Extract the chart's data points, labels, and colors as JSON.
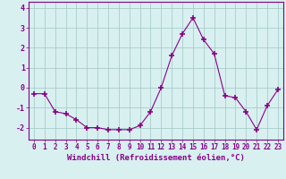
{
  "x": [
    0,
    1,
    2,
    3,
    4,
    5,
    6,
    7,
    8,
    9,
    10,
    11,
    12,
    13,
    14,
    15,
    16,
    17,
    18,
    19,
    20,
    21,
    22,
    23
  ],
  "y": [
    -0.3,
    -0.3,
    -1.2,
    -1.3,
    -1.6,
    -2.0,
    -2.0,
    -2.1,
    -2.1,
    -2.1,
    -1.9,
    -1.2,
    0.0,
    1.6,
    2.7,
    3.5,
    2.4,
    1.7,
    -0.4,
    -0.5,
    -1.2,
    -2.1,
    -0.9,
    -0.1
  ],
  "line_color": "#880088",
  "marker": "+",
  "bg_color": "#d8f0f0",
  "grid_color": "#aacccc",
  "xlabel": "Windchill (Refroidissement éolien,°C)",
  "xlabel_color": "#880088",
  "xlim": [
    -0.5,
    23.5
  ],
  "ylim": [
    -2.6,
    4.3
  ],
  "yticks": [
    -2,
    -1,
    0,
    1,
    2,
    3,
    4
  ],
  "xticks": [
    0,
    1,
    2,
    3,
    4,
    5,
    6,
    7,
    8,
    9,
    10,
    11,
    12,
    13,
    14,
    15,
    16,
    17,
    18,
    19,
    20,
    21,
    22,
    23
  ],
  "tick_color": "#880088",
  "spine_color": "#880088",
  "tick_fontsize": 5.5,
  "xlabel_fontsize": 6.5,
  "ylabel_fontsize": 6
}
